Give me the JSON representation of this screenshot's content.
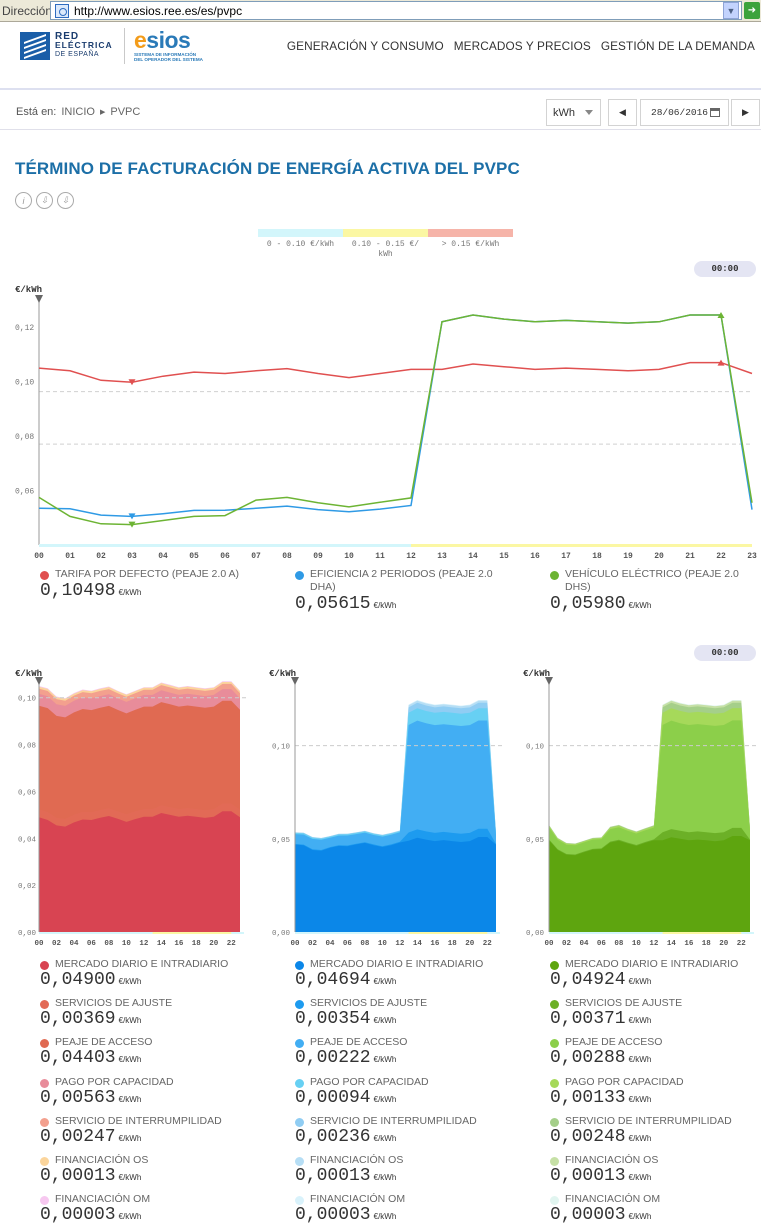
{
  "browser": {
    "address_label": "Dirección",
    "url": "http://www.esios.ree.es/es/pvpc"
  },
  "header": {
    "ree_line1": "RED",
    "ree_line2": "ELÉCTRICA",
    "ree_line3": "DE ESPAÑA",
    "esios_e": "e",
    "esios_rest": "sios",
    "esios_sub1": "SISTEMA DE INFORMACIÓN",
    "esios_sub2": "DEL OPERADOR DEL SISTEMA",
    "nav": [
      "GENERACIÓN Y CONSUMO",
      "MERCADOS Y PRECIOS",
      "GESTIÓN DE LA DEMANDA"
    ]
  },
  "breadcrumb": {
    "label": "Está en:",
    "home": "INICIO",
    "current": "PVPC"
  },
  "controls": {
    "unit": "kWh",
    "date": "28/06/2016"
  },
  "title": "TÉRMINO DE FACTURACIÓN DE ENERGÍA ACTIVA DEL PVPC",
  "price_ranges": [
    {
      "label": "0 - 0.10 €/kWh",
      "color": "#d3f6fb"
    },
    {
      "label": "0.10 - 0.15 €/ kWh",
      "color": "#fbf7a3"
    },
    {
      "label": "> 0.15 €/kWh",
      "color": "#f6b4a9"
    }
  ],
  "main_time": "00:00",
  "sub_time": "00:00",
  "colors": {
    "red": "#e05050",
    "blue": "#2f9ae5",
    "green": "#6db434",
    "accent": "#1c6fa7"
  },
  "chart_data": [
    {
      "type": "line",
      "ylabel": "€/kWh",
      "ylim": [
        0.04,
        0.13
      ],
      "yticks": [
        "0,06",
        "0,08",
        "0,10",
        "0,12"
      ],
      "x": [
        "00",
        "01",
        "02",
        "03",
        "04",
        "05",
        "06",
        "07",
        "08",
        "09",
        "10",
        "11",
        "12",
        "13",
        "14",
        "15",
        "16",
        "17",
        "18",
        "19",
        "20",
        "21",
        "22",
        "23"
      ],
      "series": [
        {
          "name": "TARIFA POR DEFECTO (PEAJE 2.0 A)",
          "color": "#e05050",
          "values": [
            0.105,
            0.104,
            0.1005,
            0.0998,
            0.102,
            0.1035,
            0.103,
            0.104,
            0.1048,
            0.103,
            0.1015,
            0.103,
            0.1045,
            0.1045,
            0.1065,
            0.1055,
            0.1045,
            0.105,
            0.1045,
            0.104,
            0.1045,
            0.107,
            0.107,
            0.103
          ]
        },
        {
          "name": "EFICIENCIA 2 PERIODOS (PEAJE 2.0 DHA)",
          "color": "#2f9ae5",
          "values": [
            0.0535,
            0.0533,
            0.051,
            0.0505,
            0.0515,
            0.0527,
            0.0528,
            0.0535,
            0.0543,
            0.053,
            0.0522,
            0.0532,
            0.0545,
            0.122,
            0.1245,
            0.123,
            0.122,
            0.1225,
            0.122,
            0.1215,
            0.122,
            0.1245,
            0.1245,
            0.053
          ]
        },
        {
          "name": "VEHÍCULO ELÉCTRICO (PEAJE 2.0 DHS)",
          "color": "#6db434",
          "values": [
            0.0575,
            0.0505,
            0.0478,
            0.0475,
            0.049,
            0.0505,
            0.0508,
            0.0565,
            0.0575,
            0.0555,
            0.054,
            0.0557,
            0.0573,
            0.122,
            0.1245,
            0.123,
            0.122,
            0.1225,
            0.122,
            0.1215,
            0.122,
            0.1245,
            0.1245,
            0.0555
          ]
        }
      ]
    },
    {
      "type": "area",
      "ylabel": "€/kWh",
      "ylim": [
        0,
        0.105
      ],
      "yticks": [
        "0,00",
        "0,02",
        "0,04",
        "0,06",
        "0,08",
        "0,10"
      ],
      "x": [
        "00",
        "02",
        "04",
        "06",
        "08",
        "10",
        "12",
        "14",
        "16",
        "18",
        "20",
        "22"
      ],
      "total_values": [
        0.105,
        0.104,
        0.1005,
        0.0998,
        0.102,
        0.1035,
        0.103,
        0.104,
        0.1048,
        0.103,
        0.1015,
        0.103,
        0.1045,
        0.1045,
        0.1065,
        0.1055,
        0.1045,
        0.105,
        0.1045,
        0.104,
        0.1045,
        0.107,
        0.107,
        0.103
      ],
      "base_values": [
        0.049,
        0.0478,
        0.0455,
        0.045,
        0.0468,
        0.048,
        0.0478,
        0.0488,
        0.0495,
        0.0483,
        0.047,
        0.0482,
        0.0492,
        0.0492,
        0.0508,
        0.05,
        0.0492,
        0.0496,
        0.0492,
        0.0487,
        0.0492,
        0.0515,
        0.0515,
        0.049
      ]
    },
    {
      "type": "area",
      "ylabel": "€/kWh",
      "ylim": [
        0,
        0.132
      ],
      "yticks": [
        "0,00",
        "0,05",
        "0,10"
      ],
      "x": [
        "00",
        "02",
        "04",
        "06",
        "08",
        "10",
        "12",
        "14",
        "16",
        "18",
        "20",
        "22"
      ],
      "total_values": [
        0.0535,
        0.0533,
        0.051,
        0.0505,
        0.0515,
        0.0527,
        0.0528,
        0.0535,
        0.0543,
        0.053,
        0.0522,
        0.0532,
        0.0545,
        0.122,
        0.1245,
        0.123,
        0.122,
        0.1225,
        0.122,
        0.1215,
        0.122,
        0.1245,
        0.1245,
        0.053
      ],
      "base_values": [
        0.0469,
        0.0465,
        0.044,
        0.0436,
        0.0452,
        0.0462,
        0.046,
        0.047,
        0.0478,
        0.0466,
        0.0456,
        0.0466,
        0.048,
        0.049,
        0.0506,
        0.0496,
        0.0488,
        0.0493,
        0.0488,
        0.0483,
        0.0488,
        0.051,
        0.051,
        0.0469
      ]
    },
    {
      "type": "area",
      "ylabel": "€/kWh",
      "ylim": [
        0,
        0.132
      ],
      "yticks": [
        "0,00",
        "0,05",
        "0,10"
      ],
      "x": [
        "00",
        "02",
        "04",
        "06",
        "08",
        "10",
        "12",
        "14",
        "16",
        "18",
        "20",
        "22"
      ],
      "total_values": [
        0.0575,
        0.0505,
        0.0478,
        0.0475,
        0.049,
        0.0505,
        0.0508,
        0.0565,
        0.0575,
        0.0555,
        0.054,
        0.0557,
        0.0573,
        0.122,
        0.1245,
        0.123,
        0.122,
        0.1225,
        0.122,
        0.1215,
        0.122,
        0.1245,
        0.1245,
        0.0555
      ],
      "base_values": [
        0.0492,
        0.044,
        0.0415,
        0.0412,
        0.0428,
        0.0442,
        0.0445,
        0.048,
        0.049,
        0.0475,
        0.0462,
        0.0478,
        0.0492,
        0.0492,
        0.0508,
        0.05,
        0.0492,
        0.0496,
        0.0492,
        0.0487,
        0.0492,
        0.0515,
        0.0515,
        0.0492
      ]
    }
  ],
  "main_legend": [
    {
      "label": "TARIFA POR DEFECTO (PEAJE 2.0 A)",
      "value": "0,10498",
      "unit": "€/kWh",
      "color": "#e05050"
    },
    {
      "label": "EFICIENCIA 2 PERIODOS (PEAJE 2.0",
      "label2": "DHA)",
      "value": "0,05615",
      "unit": "€/kWh",
      "color": "#2f9ae5"
    },
    {
      "label": "VEHÍCULO ELÉCTRICO (PEAJE 2.0",
      "label2": "DHS)",
      "value": "0,05980",
      "unit": "€/kWh",
      "color": "#6db434"
    }
  ],
  "breakdown": [
    {
      "items": [
        {
          "label": "MERCADO DIARIO E INTRADIARIO",
          "value": "0,04900",
          "unit": "€/kWh",
          "color": "#d84452"
        },
        {
          "label": "SERVICIOS DE AJUSTE",
          "value": "0,00369",
          "unit": "€/kWh",
          "color": "#e26a56"
        },
        {
          "label": "PEAJE DE ACCESO",
          "value": "0,04403",
          "unit": "€/kWh",
          "color": "#e06a52"
        },
        {
          "label": "PAGO POR CAPACIDAD",
          "value": "0,00563",
          "unit": "€/kWh",
          "color": "#e88c9a"
        },
        {
          "label": "SERVICIO DE INTERRUMPILIDAD",
          "value": "0,00247",
          "unit": "€/kWh",
          "color": "#f3a08e"
        },
        {
          "label": "FINANCIACIÓN OS",
          "value": "0,00013",
          "unit": "€/kWh",
          "color": "#fbd59c"
        },
        {
          "label": "FINANCIACIÓN OM",
          "value": "0,00003",
          "unit": "€/kWh",
          "color": "#f7c8f0"
        }
      ]
    },
    {
      "items": [
        {
          "label": "MERCADO DIARIO E INTRADIARIO",
          "value": "0,04694",
          "unit": "€/kWh",
          "color": "#0b87e8"
        },
        {
          "label": "SERVICIOS DE AJUSTE",
          "value": "0,00354",
          "unit": "€/kWh",
          "color": "#1d9bef"
        },
        {
          "label": "PEAJE DE ACCESO",
          "value": "0,00222",
          "unit": "€/kWh",
          "color": "#42aef3"
        },
        {
          "label": "PAGO POR CAPACIDAD",
          "value": "0,00094",
          "unit": "€/kWh",
          "color": "#67d0f3"
        },
        {
          "label": "SERVICIO DE INTERRUMPILIDAD",
          "value": "0,00236",
          "unit": "€/kWh",
          "color": "#90cdf3"
        },
        {
          "label": "FINANCIACIÓN OS",
          "value": "0,00013",
          "unit": "€/kWh",
          "color": "#b6def5"
        },
        {
          "label": "FINANCIACIÓN OM",
          "value": "0,00003",
          "unit": "€/kWh",
          "color": "#d9f2fb"
        }
      ]
    },
    {
      "items": [
        {
          "label": "MERCADO DIARIO E INTRADIARIO",
          "value": "0,04924",
          "unit": "€/kWh",
          "color": "#5ea50f"
        },
        {
          "label": "SERVICIOS DE AJUSTE",
          "value": "0,00371",
          "unit": "€/kWh",
          "color": "#6cb027"
        },
        {
          "label": "PEAJE DE ACCESO",
          "value": "0,00288",
          "unit": "€/kWh",
          "color": "#8ccf4a"
        },
        {
          "label": "PAGO POR CAPACIDAD",
          "value": "0,00133",
          "unit": "€/kWh",
          "color": "#a6d95a"
        },
        {
          "label": "SERVICIO DE INTERRUMPILIDAD",
          "value": "0,00248",
          "unit": "€/kWh",
          "color": "#a5cf8a"
        },
        {
          "label": "FINANCIACIÓN OS",
          "value": "0,00013",
          "unit": "€/kWh",
          "color": "#c6e0a6"
        },
        {
          "label": "FINANCIACIÓN OM",
          "value": "0,00003",
          "unit": "€/kWh",
          "color": "#e1f5f0"
        }
      ]
    }
  ]
}
